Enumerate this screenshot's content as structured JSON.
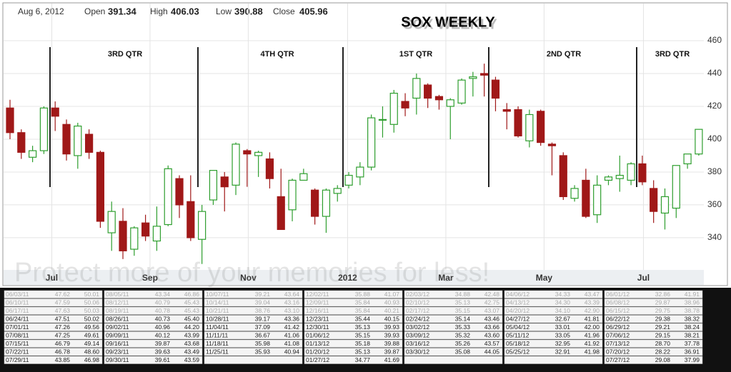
{
  "header": {
    "date": "Aug 6, 2012",
    "open_label": "Open",
    "open": "391.34",
    "high_label": "High",
    "high": "406.03",
    "low_label": "Low",
    "low": "390.88",
    "close_label": "Close",
    "close": "405.96"
  },
  "chart_data": {
    "type": "candlestick",
    "title": "SOX WEEKLY",
    "watermark": "Protect more of your memories for less!",
    "annotations": [
      "3RD QTR",
      "4TH QTR",
      "1ST QTR",
      "2ND QTR",
      "3RD QTR"
    ],
    "up_color": "#2e9e2e",
    "down_color": "#a01818",
    "grid": true,
    "open": [
      419,
      404,
      389,
      393,
      419,
      409,
      390,
      403,
      392,
      343,
      350,
      333,
      349,
      338,
      348,
      376,
      362,
      339,
      363,
      377,
      372,
      393,
      390,
      388,
      365,
      357,
      375,
      369,
      353,
      367,
      372,
      377,
      383,
      412,
      409,
      423,
      425,
      433,
      426,
      420,
      422,
      437,
      440,
      436,
      418,
      418,
      399,
      417,
      397,
      390,
      364,
      375,
      354,
      375,
      376,
      375,
      385,
      370,
      355,
      358,
      385,
      391
    ],
    "high": [
      424,
      406,
      396,
      420,
      423,
      412,
      410,
      406,
      393,
      362,
      358,
      347,
      354,
      359,
      384,
      378,
      378,
      360,
      381,
      380,
      398,
      394,
      393,
      392,
      382,
      376,
      382,
      370,
      370,
      372,
      380,
      386,
      415,
      420,
      430,
      428,
      440,
      434,
      427,
      425,
      437,
      441,
      446,
      438,
      422,
      420,
      418,
      418,
      398,
      392,
      372,
      382,
      378,
      378,
      390,
      386,
      390,
      375,
      370,
      384,
      391,
      406
    ],
    "low": [
      400,
      388,
      386,
      391,
      405,
      387,
      382,
      388,
      346,
      332,
      327,
      329,
      338,
      332,
      347,
      352,
      338,
      324,
      360,
      356,
      366,
      371,
      377,
      370,
      345,
      350,
      375,
      348,
      343,
      362,
      370,
      372,
      381,
      401,
      404,
      414,
      415,
      419,
      418,
      400,
      421,
      426,
      426,
      417,
      406,
      401,
      395,
      396,
      378,
      363,
      362,
      352,
      349,
      372,
      368,
      372,
      372,
      349,
      345,
      352,
      382,
      390
    ],
    "close": [
      404,
      392,
      393,
      419,
      414,
      391,
      408,
      392,
      350,
      356,
      332,
      346,
      341,
      347,
      382,
      360,
      340,
      356,
      381,
      371,
      397,
      391,
      392,
      376,
      345,
      375,
      379,
      353,
      369,
      370,
      378,
      383,
      413,
      412,
      428,
      419,
      437,
      425,
      424,
      424,
      436,
      438,
      439,
      425,
      417,
      402,
      415,
      398,
      396,
      365,
      370,
      353,
      372,
      377,
      378,
      385,
      374,
      356,
      365,
      384,
      391,
      406
    ],
    "xlim": [
      -0.57,
      61.45
    ],
    "xticks": [
      {
        "value": 3.7,
        "label": "Jul"
      },
      {
        "value": 12.4,
        "label": "Sep"
      },
      {
        "value": 21.1,
        "label": "Nov"
      },
      {
        "value": 29.9,
        "label": "2012"
      },
      {
        "value": 38.6,
        "label": "Mar"
      },
      {
        "value": 47.3,
        "label": "May"
      },
      {
        "value": 56.1,
        "label": "Jul"
      }
    ],
    "ylim": [
      320.4,
      482.6
    ],
    "yticks": [
      340,
      360,
      380,
      400,
      420,
      440,
      460
    ]
  },
  "table": {
    "groups": [
      [
        [
          "06/03/11",
          "47.62",
          "50.01"
        ],
        [
          "06/10/11",
          "47.59",
          "50.06"
        ],
        [
          "06/17/11",
          "47.63",
          "50.03"
        ],
        [
          "06/24/11",
          "47.51",
          "50.02"
        ],
        [
          "07/01/11",
          "47.26",
          "49.56"
        ],
        [
          "07/08/11",
          "47.25",
          "49.61"
        ],
        [
          "07/15/11",
          "46.79",
          "49.14"
        ],
        [
          "07/22/11",
          "46.78",
          "48.60"
        ],
        [
          "07/29/11",
          "43.85",
          "46.98"
        ]
      ],
      [
        [
          "08/05/11",
          "43.34",
          "46.86"
        ],
        [
          "08/12/11",
          "40.79",
          "45.43"
        ],
        [
          "08/19/11",
          "40.78",
          "45.43"
        ],
        [
          "08/26/11",
          "40.73",
          "45.40"
        ],
        [
          "09/02/11",
          "40.96",
          "44.20"
        ],
        [
          "09/09/11",
          "40.12",
          "43.99"
        ],
        [
          "09/16/11",
          "39.87",
          "43.68"
        ],
        [
          "09/23/11",
          "39.63",
          "43.49"
        ],
        [
          "09/30/11",
          "39.61",
          "43.59"
        ]
      ],
      [
        [
          "10/07/11",
          "39.21",
          "43.64"
        ],
        [
          "10/14/11",
          "39.04",
          "43.16"
        ],
        [
          "10/21/11",
          "38.76",
          "43.10"
        ],
        [
          "10/28/11",
          "39.17",
          "43.36"
        ],
        [
          "11/04/11",
          "37.09",
          "41.42"
        ],
        [
          "11/11/11",
          "36.67",
          "41.06"
        ],
        [
          "11/18/11",
          "35.98",
          "41.08"
        ],
        [
          "11/25/11",
          "35.93",
          "40.94"
        ]
      ],
      [
        [
          "12/02/11",
          "35.88",
          "41.07"
        ],
        [
          "12/09/11",
          "35.84",
          "40.93"
        ],
        [
          "12/16/11",
          "35.84",
          "40.21"
        ],
        [
          "12/23/11",
          "35.44",
          "40.15"
        ],
        [
          "12/30/11",
          "35.13",
          "39.93"
        ],
        [
          "01/06/12",
          "35.15",
          "39.93"
        ],
        [
          "01/13/12",
          "35.18",
          "39.88"
        ],
        [
          "01/20/12",
          "35.13",
          "39.87"
        ],
        [
          "01/27/12",
          "34.77",
          "41.69"
        ]
      ],
      [
        [
          "02/03/12",
          "34.88",
          "42.48"
        ],
        [
          "02/10/12",
          "35.13",
          "42.75"
        ],
        [
          "02/17/12",
          "35.15",
          "43.07"
        ],
        [
          "02/24/12",
          "35.14",
          "43.46"
        ],
        [
          "03/02/12",
          "35.33",
          "43.66"
        ],
        [
          "03/09/12",
          "35.32",
          "43.60"
        ],
        [
          "03/16/12",
          "35.26",
          "43.57"
        ],
        [
          "03/30/12",
          "35.08",
          "44.05"
        ]
      ],
      [
        [
          "04/06/12",
          "34.33",
          "43.47"
        ],
        [
          "04/13/12",
          "34.30",
          "43.39"
        ],
        [
          "04/20/12",
          "34.10",
          "42.90"
        ],
        [
          "04/27/12",
          "32.67",
          "41.81"
        ],
        [
          "05/04/12",
          "33.01",
          "42.00"
        ],
        [
          "05/11/12",
          "33.05",
          "41.96"
        ],
        [
          "05/18/12",
          "32.95",
          "41.92"
        ],
        [
          "05/25/12",
          "32.91",
          "41.98"
        ]
      ],
      [
        [
          "06/01/12",
          "32.86",
          "41.91"
        ],
        [
          "06/08/12",
          "29.87",
          "38.96"
        ],
        [
          "06/15/12",
          "29.75",
          "38.78"
        ],
        [
          "06/22/12",
          "29.38",
          "38.32"
        ],
        [
          "06/29/12",
          "29.21",
          "38.24"
        ],
        [
          "07/06/12",
          "29.15",
          "38.21"
        ],
        [
          "07/13/12",
          "28.70",
          "37.78"
        ],
        [
          "07/20/12",
          "28.22",
          "36.91"
        ],
        [
          "07/27/12",
          "29.08",
          "37.99"
        ]
      ]
    ]
  }
}
